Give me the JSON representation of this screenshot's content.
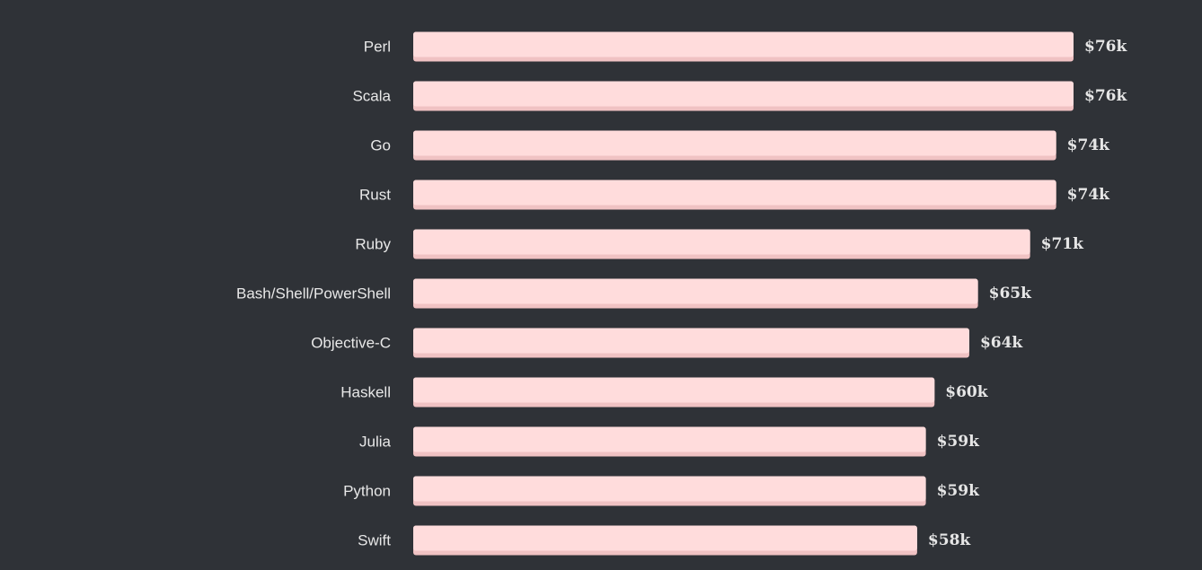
{
  "colors": {
    "background": "#2f3237",
    "bar": "#ffdcdc",
    "bar_shadow": "#f0c2c3",
    "label_text": "#e8e8e8",
    "value_text": "#e6e6e6"
  },
  "chart_data": {
    "type": "bar",
    "orientation": "horizontal",
    "categories": [
      "Perl",
      "Scala",
      "Go",
      "Rust",
      "Ruby",
      "Bash/Shell/PowerShell",
      "Objective-C",
      "Haskell",
      "Julia",
      "Python",
      "Swift"
    ],
    "values": [
      76,
      76,
      74,
      74,
      71,
      65,
      64,
      60,
      59,
      59,
      58
    ],
    "value_labels": [
      "$76k",
      "$76k",
      "$74k",
      "$74k",
      "$71k",
      "$65k",
      "$64k",
      "$60k",
      "$59k",
      "$59k",
      "$58k"
    ],
    "unit": "$k",
    "xlim": [
      0,
      76
    ],
    "grid": false,
    "legend": "none"
  }
}
